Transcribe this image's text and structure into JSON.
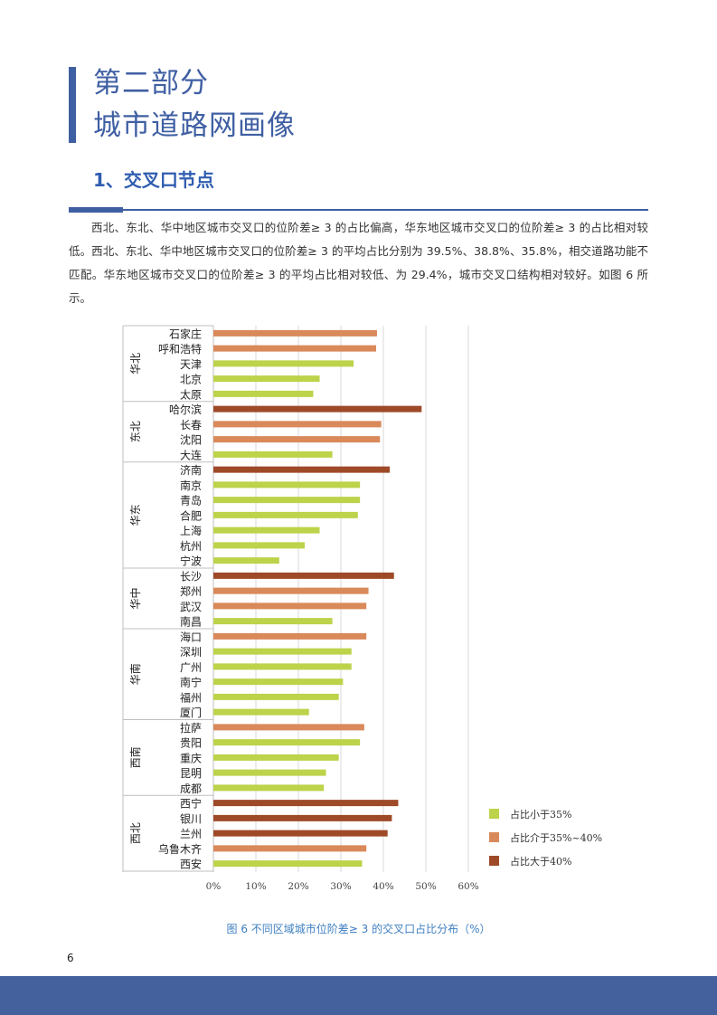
{
  "title": {
    "line1": "第二部分",
    "line2": "城市道路网画像"
  },
  "section_heading": "1、交叉口节点",
  "paragraph": "西北、东北、华中地区城市交叉口的位阶差≥ 3 的占比偏高，华东地区城市交叉口的位阶差≥ 3 的占比相对较低。西北、东北、华中地区城市交叉口的位阶差≥ 3 的平均占比分别为 39.5%、38.8%、35.8%，相交道路功能不匹配。华东地区城市交叉口的位阶差≥ 3 的平均占比相对较低、为 29.4%，城市交叉口结构相对较好。如图 6 所示。",
  "caption": "图 6  不同区域城市位阶差≥ 3 的交叉口占比分布（%）",
  "page_number": "6",
  "colors": {
    "accent": "#3f5fa3",
    "lt35": "#bcd34a",
    "mid": "#d9895a",
    "gt40": "#9e4a28"
  },
  "chart_data": {
    "type": "bar",
    "orientation": "horizontal",
    "xlim": [
      0,
      60
    ],
    "x_ticks": [
      "0%",
      "10%",
      "20%",
      "30%",
      "40%",
      "50%",
      "60%"
    ],
    "legend": [
      {
        "key": "lt35",
        "label": "占比小于35%"
      },
      {
        "key": "mid",
        "label": "占比介于35%~40%"
      },
      {
        "key": "gt40",
        "label": "占比大于40%"
      }
    ],
    "legend_position": "bottom-right",
    "groups": [
      {
        "region": "华北",
        "cities": [
          {
            "name": "石家庄",
            "value": 38.5,
            "class": "mid"
          },
          {
            "name": "呼和浩特",
            "value": 38.3,
            "class": "mid"
          },
          {
            "name": "天津",
            "value": 33.0,
            "class": "lt35"
          },
          {
            "name": "北京",
            "value": 25.0,
            "class": "lt35"
          },
          {
            "name": "太原",
            "value": 23.5,
            "class": "lt35"
          }
        ]
      },
      {
        "region": "东北",
        "cities": [
          {
            "name": "哈尔滨",
            "value": 49.0,
            "class": "gt40"
          },
          {
            "name": "长春",
            "value": 39.5,
            "class": "mid"
          },
          {
            "name": "沈阳",
            "value": 39.2,
            "class": "mid"
          },
          {
            "name": "大连",
            "value": 28.0,
            "class": "lt35"
          }
        ]
      },
      {
        "region": "华东",
        "cities": [
          {
            "name": "济南",
            "value": 41.5,
            "class": "gt40"
          },
          {
            "name": "南京",
            "value": 34.5,
            "class": "lt35"
          },
          {
            "name": "青岛",
            "value": 34.5,
            "class": "lt35"
          },
          {
            "name": "合肥",
            "value": 34.0,
            "class": "lt35"
          },
          {
            "name": "上海",
            "value": 25.0,
            "class": "lt35"
          },
          {
            "name": "杭州",
            "value": 21.5,
            "class": "lt35"
          },
          {
            "name": "宁波",
            "value": 15.5,
            "class": "lt35"
          }
        ]
      },
      {
        "region": "华中",
        "cities": [
          {
            "name": "长沙",
            "value": 42.5,
            "class": "gt40"
          },
          {
            "name": "郑州",
            "value": 36.5,
            "class": "mid"
          },
          {
            "name": "武汉",
            "value": 36.0,
            "class": "mid"
          },
          {
            "name": "南昌",
            "value": 28.0,
            "class": "lt35"
          }
        ]
      },
      {
        "region": "华南",
        "cities": [
          {
            "name": "海口",
            "value": 36.0,
            "class": "mid"
          },
          {
            "name": "深圳",
            "value": 32.5,
            "class": "lt35"
          },
          {
            "name": "广州",
            "value": 32.5,
            "class": "lt35"
          },
          {
            "name": "南宁",
            "value": 30.5,
            "class": "lt35"
          },
          {
            "name": "福州",
            "value": 29.5,
            "class": "lt35"
          },
          {
            "name": "厦门",
            "value": 22.5,
            "class": "lt35"
          }
        ]
      },
      {
        "region": "西南",
        "cities": [
          {
            "name": "拉萨",
            "value": 35.5,
            "class": "mid"
          },
          {
            "name": "贵阳",
            "value": 34.5,
            "class": "lt35"
          },
          {
            "name": "重庆",
            "value": 29.5,
            "class": "lt35"
          },
          {
            "name": "昆明",
            "value": 26.5,
            "class": "lt35"
          },
          {
            "name": "成都",
            "value": 26.0,
            "class": "lt35"
          }
        ]
      },
      {
        "region": "西北",
        "cities": [
          {
            "name": "西宁",
            "value": 43.5,
            "class": "gt40"
          },
          {
            "name": "银川",
            "value": 42.0,
            "class": "gt40"
          },
          {
            "name": "兰州",
            "value": 41.0,
            "class": "gt40"
          },
          {
            "name": "乌鲁木齐",
            "value": 36.0,
            "class": "mid"
          },
          {
            "name": "西安",
            "value": 35.0,
            "class": "lt35"
          }
        ]
      }
    ]
  }
}
